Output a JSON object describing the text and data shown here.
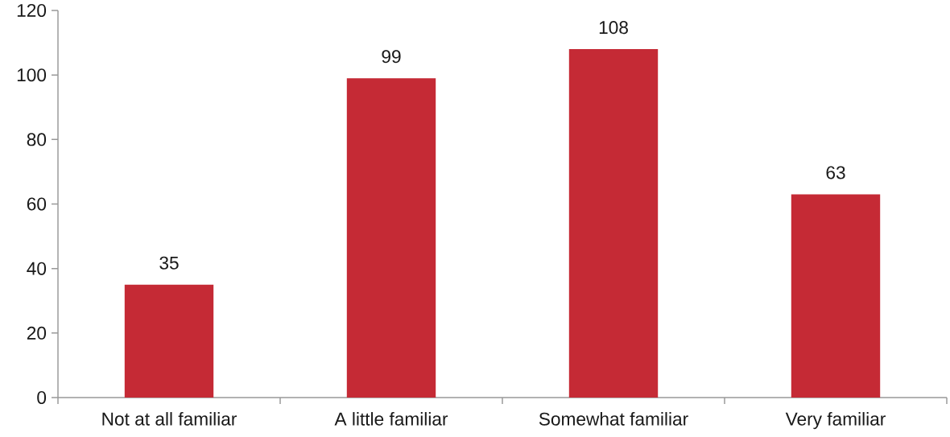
{
  "chart_data": {
    "type": "bar",
    "categories": [
      "Not at all familiar",
      "A little familiar",
      "Somewhat familiar",
      "Very familiar"
    ],
    "values": [
      35,
      99,
      108,
      63
    ],
    "color": "#c52a35",
    "ylim": [
      0,
      120
    ],
    "yticks": [
      0,
      20,
      40,
      60,
      80,
      100,
      120
    ],
    "data_labels": true
  }
}
